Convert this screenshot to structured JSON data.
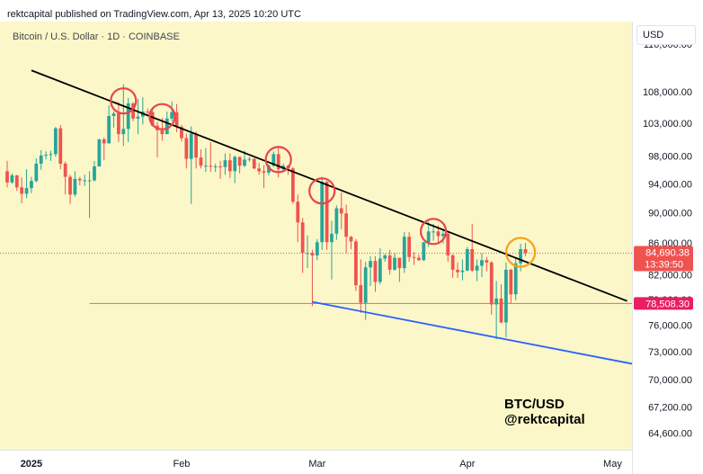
{
  "header": {
    "published_text": "rektcapital published on TradingView.com, Apr 13, 2025 10:20 UTC"
  },
  "symbol_title": "Bitcoin / U.S. Dollar · 1D · COINBASE",
  "currency_button": "USD",
  "watermark": {
    "line1": "BTC/USD",
    "line2": "@rektcapital"
  },
  "colors": {
    "background": "#fbf7c8",
    "up": "#26a69a",
    "down": "#ef5350",
    "trendline": "#000000",
    "support": "#2962ff",
    "circle_red": "#e8444f",
    "circle_orange": "#f7a21b",
    "last_price_bg": "#ef5350",
    "level_bg": "#e91e63"
  },
  "chart_data": {
    "type": "candlestick",
    "title": "Bitcoin / U.S. Dollar · 1D · COINBASE",
    "price_axis": {
      "ticks": [
        "116,000.00",
        "108,000.00",
        "103,000.00",
        "98,000.00",
        "94,000.00",
        "90,000.00",
        "86,000.00",
        "82,000.00",
        "79,000.00",
        "76,000.00",
        "73,000.00",
        "70,000.00",
        "67,200.00",
        "64,600.00"
      ],
      "scale": "log"
    },
    "time_axis": {
      "ticks": [
        "2025",
        "Feb",
        "Mar",
        "Apr",
        "May"
      ]
    },
    "x_range": [
      "2024-12-27",
      "2025-05-05"
    ],
    "y_range": [
      63000,
      120000
    ],
    "last_price": {
      "value": "84,690.38",
      "countdown": "13:39:50",
      "line_value": 84690
    },
    "horizontal_level": {
      "value": "78,508.30",
      "line_value": 78508,
      "from": "2025-01-13",
      "to": "2025-05-05"
    },
    "resistance_line": {
      "from": [
        "2025-01-01",
        111500
      ],
      "to": [
        "2025-05-04",
        78800
      ]
    },
    "support_line": {
      "from": [
        "2025-02-28",
        78700
      ],
      "to": [
        "2025-05-05",
        71700
      ]
    },
    "circles": [
      {
        "date": "2025-01-20",
        "price": 106500,
        "color": "red"
      },
      {
        "date": "2025-01-28",
        "price": 104000,
        "color": "red"
      },
      {
        "date": "2025-02-21",
        "price": 97500,
        "color": "red"
      },
      {
        "date": "2025-03-02",
        "price": 93000,
        "color": "red"
      },
      {
        "date": "2025-03-25",
        "price": 87500,
        "color": "red"
      },
      {
        "date": "2025-04-12",
        "price": 84800,
        "color": "orange"
      }
    ],
    "candles": [
      [
        "2024-12-27",
        95800,
        97300,
        93500,
        94200
      ],
      [
        "2024-12-28",
        94200,
        95500,
        94000,
        95200
      ],
      [
        "2024-12-29",
        95200,
        95300,
        93000,
        93500
      ],
      [
        "2024-12-30",
        93500,
        94900,
        91300,
        92600
      ],
      [
        "2024-12-31",
        92600,
        96100,
        92000,
        93400
      ],
      [
        "2025-01-01",
        93400,
        95000,
        92700,
        94400
      ],
      [
        "2025-01-02",
        94400,
        97700,
        94200,
        96900
      ],
      [
        "2025-01-03",
        96900,
        98900,
        96000,
        98100
      ],
      [
        "2025-01-04",
        98100,
        98700,
        97500,
        98200
      ],
      [
        "2025-01-05",
        98200,
        98800,
        97300,
        98300
      ],
      [
        "2025-01-06",
        98300,
        102400,
        97900,
        102200
      ],
      [
        "2025-01-07",
        102200,
        102700,
        96100,
        96900
      ],
      [
        "2025-01-08",
        96900,
        97200,
        92500,
        95000
      ],
      [
        "2025-01-09",
        95000,
        95300,
        91200,
        92500
      ],
      [
        "2025-01-10",
        92500,
        95800,
        92200,
        94700
      ],
      [
        "2025-01-11",
        94700,
        95000,
        93800,
        94500
      ],
      [
        "2025-01-12",
        94500,
        95300,
        93700,
        94500
      ],
      [
        "2025-01-13",
        94500,
        95800,
        89300,
        94500
      ],
      [
        "2025-01-14",
        94500,
        97300,
        94300,
        96500
      ],
      [
        "2025-01-15",
        96500,
        100600,
        96500,
        100500
      ],
      [
        "2025-01-16",
        100500,
        100800,
        97400,
        99900
      ],
      [
        "2025-01-17",
        99900,
        105800,
        99900,
        104100
      ],
      [
        "2025-01-18",
        104100,
        104800,
        102300,
        104500
      ],
      [
        "2025-01-19",
        104500,
        106300,
        100100,
        101300
      ],
      [
        "2025-01-20",
        101300,
        109200,
        99500,
        102100
      ],
      [
        "2025-01-21",
        102100,
        107000,
        100100,
        106100
      ],
      [
        "2025-01-22",
        106100,
        106300,
        103300,
        103700
      ],
      [
        "2025-01-23",
        103700,
        106800,
        101300,
        104000
      ],
      [
        "2025-01-24",
        104000,
        107100,
        102800,
        104800
      ],
      [
        "2025-01-25",
        104800,
        105300,
        104200,
        104700
      ],
      [
        "2025-01-26",
        104700,
        105500,
        102500,
        102600
      ],
      [
        "2025-01-27",
        102600,
        103200,
        97800,
        101900
      ],
      [
        "2025-01-28",
        101900,
        103800,
        100300,
        101300
      ],
      [
        "2025-01-29",
        101300,
        104800,
        101300,
        103700
      ],
      [
        "2025-01-30",
        103700,
        106400,
        103300,
        104700
      ],
      [
        "2025-01-31",
        104700,
        106000,
        101600,
        102400
      ],
      [
        "2025-02-01",
        102400,
        102700,
        100200,
        100700
      ],
      [
        "2025-02-02",
        100700,
        101400,
        96200,
        97600
      ],
      [
        "2025-02-03",
        97600,
        102500,
        91200,
        101400
      ],
      [
        "2025-02-04",
        101400,
        101700,
        96200,
        97800
      ],
      [
        "2025-02-05",
        97800,
        99000,
        96200,
        96600
      ],
      [
        "2025-02-06",
        96600,
        99200,
        95700,
        96600
      ],
      [
        "2025-02-07",
        96600,
        100100,
        95700,
        96500
      ],
      [
        "2025-02-08",
        96500,
        96900,
        95700,
        96500
      ],
      [
        "2025-02-09",
        96500,
        97300,
        94700,
        96400
      ],
      [
        "2025-02-10",
        96400,
        98400,
        95300,
        97400
      ],
      [
        "2025-02-11",
        97400,
        98400,
        94800,
        95800
      ],
      [
        "2025-02-12",
        95800,
        98100,
        94100,
        97900
      ],
      [
        "2025-02-13",
        97900,
        97900,
        95500,
        96600
      ],
      [
        "2025-02-14",
        96600,
        98800,
        96400,
        97500
      ],
      [
        "2025-02-15",
        97500,
        97900,
        97200,
        97600
      ],
      [
        "2025-02-16",
        97600,
        97700,
        96100,
        96200
      ],
      [
        "2025-02-17",
        96200,
        97000,
        95300,
        95800
      ],
      [
        "2025-02-18",
        95800,
        96700,
        93400,
        95600
      ],
      [
        "2025-02-19",
        95600,
        96800,
        95200,
        96600
      ],
      [
        "2025-02-20",
        96600,
        98700,
        96400,
        98300
      ],
      [
        "2025-02-21",
        98300,
        99500,
        94900,
        96100
      ],
      [
        "2025-02-22",
        96100,
        96900,
        95800,
        96600
      ],
      [
        "2025-02-23",
        96600,
        96700,
        95300,
        96200
      ],
      [
        "2025-02-24",
        96200,
        96400,
        91200,
        91500
      ],
      [
        "2025-02-25",
        91500,
        92500,
        86100,
        88700
      ],
      [
        "2025-02-26",
        88700,
        89300,
        82200,
        84700
      ],
      [
        "2025-02-27",
        84700,
        87000,
        82800,
        84700
      ],
      [
        "2025-02-28",
        84700,
        85100,
        78200,
        84400
      ],
      [
        "2025-03-01",
        84400,
        86500,
        83800,
        86100
      ],
      [
        "2025-03-02",
        86100,
        95000,
        85100,
        94300
      ],
      [
        "2025-03-03",
        94300,
        94400,
        85100,
        86100
      ],
      [
        "2025-03-04",
        86100,
        88900,
        81400,
        87200
      ],
      [
        "2025-03-05",
        87200,
        91000,
        86400,
        90600
      ],
      [
        "2025-03-06",
        90600,
        92800,
        87800,
        89900
      ],
      [
        "2025-03-07",
        89900,
        91100,
        84700,
        86800
      ],
      [
        "2025-03-08",
        86800,
        86900,
        85200,
        86200
      ],
      [
        "2025-03-09",
        86200,
        86500,
        80000,
        80700
      ],
      [
        "2025-03-10",
        80700,
        83900,
        77400,
        78600
      ],
      [
        "2025-03-11",
        78600,
        83600,
        76600,
        82900
      ],
      [
        "2025-03-12",
        82900,
        84300,
        80600,
        83700
      ],
      [
        "2025-03-13",
        83700,
        84300,
        79900,
        81100
      ],
      [
        "2025-03-14",
        81100,
        85300,
        80800,
        84000
      ],
      [
        "2025-03-15",
        84000,
        84600,
        83600,
        84400
      ],
      [
        "2025-03-16",
        84400,
        85100,
        82000,
        82600
      ],
      [
        "2025-03-17",
        82600,
        84700,
        82500,
        84100
      ],
      [
        "2025-03-18",
        84100,
        84100,
        81100,
        82800
      ],
      [
        "2025-03-19",
        82800,
        87400,
        82200,
        86800
      ],
      [
        "2025-03-20",
        86800,
        87400,
        83600,
        84200
      ],
      [
        "2025-03-21",
        84200,
        84800,
        83200,
        84100
      ],
      [
        "2025-03-22",
        84100,
        84500,
        83700,
        83800
      ],
      [
        "2025-03-23",
        83800,
        86000,
        83700,
        86100
      ],
      [
        "2025-03-24",
        86100,
        88800,
        85500,
        87500
      ],
      [
        "2025-03-25",
        87500,
        88500,
        86300,
        87500
      ],
      [
        "2025-03-26",
        87500,
        88300,
        85900,
        86900
      ],
      [
        "2025-03-27",
        86900,
        87800,
        85900,
        87200
      ],
      [
        "2025-03-28",
        87200,
        87500,
        83600,
        84400
      ],
      [
        "2025-03-29",
        84400,
        84600,
        81600,
        82600
      ],
      [
        "2025-03-30",
        82600,
        83500,
        81600,
        82300
      ],
      [
        "2025-03-31",
        82300,
        83900,
        81300,
        82500
      ],
      [
        "2025-04-01",
        82500,
        85500,
        82400,
        85200
      ],
      [
        "2025-04-02",
        85200,
        88500,
        82300,
        82500
      ],
      [
        "2025-04-03",
        82500,
        83900,
        81200,
        83100
      ],
      [
        "2025-04-04",
        83100,
        84700,
        81700,
        83800
      ],
      [
        "2025-04-05",
        83800,
        84200,
        82400,
        83500
      ],
      [
        "2025-04-06",
        83500,
        83700,
        77200,
        78400
      ],
      [
        "2025-04-07",
        78400,
        81200,
        74400,
        79100
      ],
      [
        "2025-04-08",
        79100,
        80800,
        76200,
        76300
      ],
      [
        "2025-04-09",
        76300,
        83500,
        74600,
        82600
      ],
      [
        "2025-04-10",
        82600,
        82700,
        78500,
        79600
      ],
      [
        "2025-04-11",
        79600,
        84200,
        78900,
        83400
      ],
      [
        "2025-04-12",
        83400,
        85900,
        82400,
        85200
      ],
      [
        "2025-04-13",
        85200,
        86000,
        84300,
        84690
      ]
    ]
  }
}
